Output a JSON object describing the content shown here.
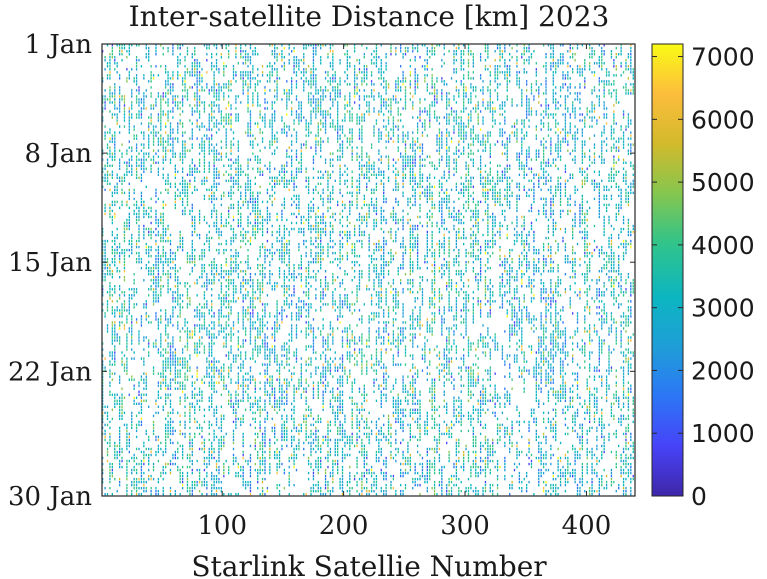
{
  "chart_data": {
    "type": "heatmap",
    "title": "Inter-satellite Distance [km] 2023",
    "xlabel": "Starlink Satellie Number",
    "ylabel": "",
    "x_ticks": [
      "100",
      "200",
      "300",
      "400"
    ],
    "x_tick_values": [
      100,
      200,
      300,
      400
    ],
    "xlim": [
      1,
      440
    ],
    "y_ticks": [
      "1 Jan",
      "8 Jan",
      "15 Jan",
      "22 Jan",
      "30 Jan"
    ],
    "y_tick_values": [
      "2023-01-01",
      "2023-01-08",
      "2023-01-15",
      "2023-01-22",
      "2023-01-30"
    ],
    "ylim": [
      "2023-01-01",
      "2023-01-30"
    ],
    "colorbar": {
      "ticks": [
        "0",
        "1000",
        "2000",
        "3000",
        "4000",
        "5000",
        "6000",
        "7000"
      ],
      "tick_values": [
        0,
        1000,
        2000,
        3000,
        4000,
        5000,
        6000,
        7000
      ],
      "range": [
        0,
        7200
      ],
      "colormap": "parula",
      "colors": [
        "#3e26a8",
        "#4743f8",
        "#2c76f6",
        "#1f9ed7",
        "#0cb6c1",
        "#31c48a",
        "#86c64f",
        "#d2ba2b",
        "#fdbd3c",
        "#f9fb15"
      ]
    },
    "grid": false,
    "legend": "none",
    "background_color": "#ffffff",
    "dominant_values_km": [
      2500,
      3800
    ]
  }
}
